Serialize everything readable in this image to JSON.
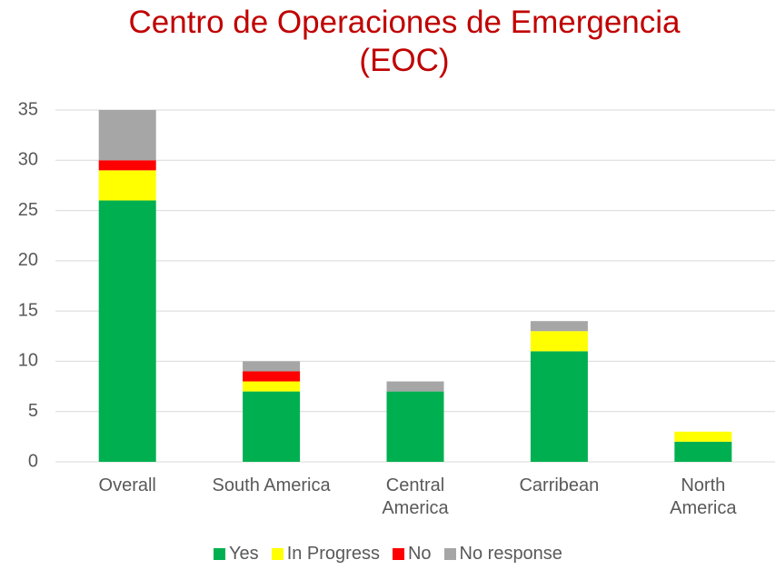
{
  "chart_data": {
    "type": "stacked_bar",
    "title": "Centro de Operaciones de Emergencia (EOC)",
    "categories": [
      "Overall",
      "South America",
      "Central America",
      "Carribean",
      "North America"
    ],
    "series": [
      {
        "name": "Yes",
        "color": "#00b050",
        "values": [
          26,
          7,
          7,
          11,
          2
        ]
      },
      {
        "name": "In Progress",
        "color": "#ffff00",
        "values": [
          3,
          1,
          0,
          2,
          1
        ]
      },
      {
        "name": "No",
        "color": "#ff0000",
        "values": [
          1,
          1,
          0,
          0,
          0
        ]
      },
      {
        "name": "No response",
        "color": "#a6a6a6",
        "values": [
          5,
          1,
          1,
          1,
          0
        ]
      }
    ],
    "ylim": [
      0,
      35
    ],
    "yticks": [
      0,
      5,
      10,
      15,
      20,
      25,
      30,
      35
    ],
    "grid": true,
    "legend": "bottom"
  }
}
